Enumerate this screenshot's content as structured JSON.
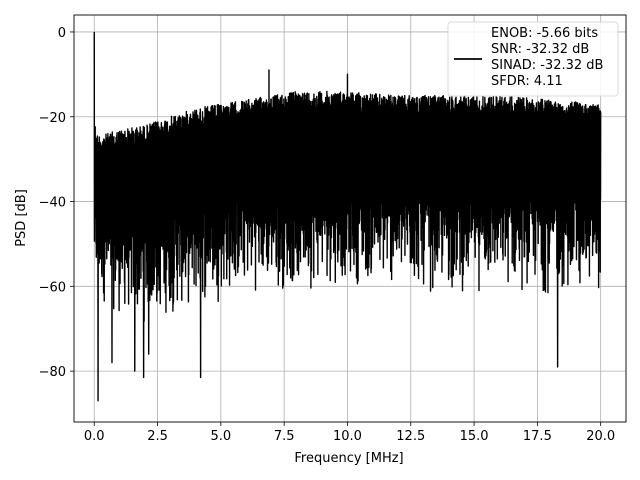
{
  "chart_data": {
    "type": "line",
    "title": "",
    "xlabel": "Frequency [MHz]",
    "ylabel": "PSD [dB]",
    "xlim": [
      -0.8,
      21.0
    ],
    "ylim": [
      -92,
      4
    ],
    "x_ticks": [
      0.0,
      2.5,
      5.0,
      7.5,
      10.0,
      12.5,
      15.0,
      17.5,
      20.0
    ],
    "x_tick_labels": [
      "0.0",
      "2.5",
      "5.0",
      "7.5",
      "10.0",
      "12.5",
      "15.0",
      "17.5",
      "20.0"
    ],
    "y_ticks": [
      0,
      -20,
      -40,
      -60,
      -80
    ],
    "y_tick_labels": [
      "0",
      "−20",
      "−40",
      "−60",
      "−80"
    ],
    "grid": true,
    "legend_position": "top-right",
    "series": [
      {
        "name": "ENOB: -5.66 bits\nSNR: -32.32 dB\nSINAD: -32.32 dB\nSFDR: 4.11",
        "color": "#000000",
        "x_range": [
          0.0,
          20.0
        ],
        "upper_envelope": {
          "x": [
            0.0,
            0.1,
            0.5,
            1.0,
            2.0,
            3.0,
            4.0,
            5.0,
            6.0,
            7.0,
            8.0,
            9.0,
            10.0,
            12.0,
            14.0,
            16.0,
            18.0,
            20.0
          ],
          "y": [
            -20,
            -24,
            -24,
            -23,
            -22,
            -20,
            -18,
            -17,
            -16,
            -15,
            -14,
            -14,
            -14,
            -15,
            -15,
            -15,
            -16,
            -17
          ]
        },
        "lower_envelope": {
          "x": [
            0.0,
            0.5,
            1.0,
            2.0,
            3.0,
            4.0,
            5.0,
            6.0,
            8.0,
            10.0,
            12.0,
            14.0,
            16.0,
            18.0,
            20.0
          ],
          "y": [
            -62,
            -66,
            -68,
            -70,
            -68,
            -66,
            -64,
            -62,
            -62,
            -60,
            -62,
            -63,
            -62,
            -63,
            -62
          ]
        },
        "peaks": [
          {
            "x": 0.0,
            "y": 0.0
          },
          {
            "x": 6.9,
            "y": -9.0
          },
          {
            "x": 10.0,
            "y": -10.0
          }
        ],
        "dips": [
          {
            "x": 0.15,
            "y": -87.0
          },
          {
            "x": 0.7,
            "y": -78.0
          },
          {
            "x": 1.6,
            "y": -80.0
          },
          {
            "x": 1.95,
            "y": -81.5
          },
          {
            "x": 2.15,
            "y": -76.0
          },
          {
            "x": 4.2,
            "y": -81.5
          },
          {
            "x": 18.3,
            "y": -79.0
          }
        ]
      }
    ]
  }
}
